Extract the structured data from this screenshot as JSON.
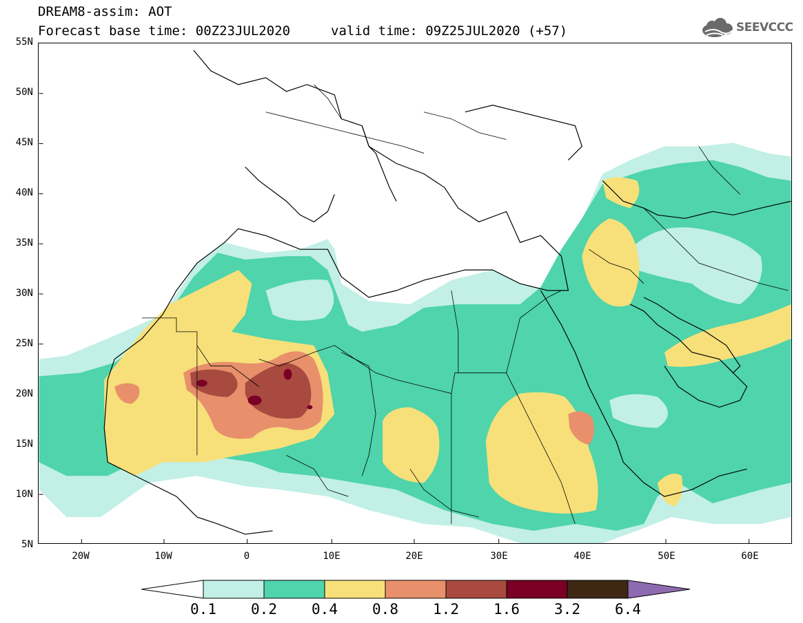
{
  "title": {
    "line1": "DREAM8-assim: AOT",
    "line2": "Forecast base time: 00Z23JUL2020",
    "valid": "valid time: 09Z25JUL2020 (+57)"
  },
  "logo": {
    "text": "SEEVCCC",
    "icon": "cloud-icon",
    "color": "#6a6a6a"
  },
  "map": {
    "type": "contour-fill-map",
    "variable": "AOT",
    "lon_range": [
      -25,
      65
    ],
    "lat_range": [
      5,
      55
    ],
    "lat_ticks": [
      "55N",
      "50N",
      "45N",
      "40N",
      "35N",
      "30N",
      "25N",
      "20N",
      "15N",
      "10N",
      "5N"
    ],
    "lon_ticks": [
      "20W",
      "10W",
      "0",
      "10E",
      "20E",
      "30E",
      "40E",
      "50E",
      "60E"
    ]
  },
  "colorbar": {
    "labels": [
      "0.1",
      "0.2",
      "0.4",
      "0.8",
      "1.2",
      "1.6",
      "3.2",
      "6.4"
    ],
    "colors": [
      "#ffffff",
      "#c2efe6",
      "#4fd4ab",
      "#f7e07a",
      "#e8906b",
      "#a84a3f",
      "#7a0026",
      "#3f2813",
      "#8e6bb0"
    ]
  }
}
